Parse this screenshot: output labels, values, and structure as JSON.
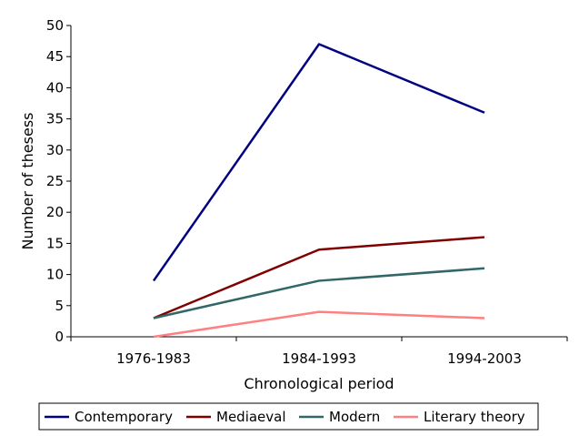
{
  "chart_data": {
    "type": "line",
    "title": "",
    "xlabel": "Chronological period",
    "ylabel": "Number of thesess",
    "categories": [
      "1976-1983",
      "1984-1993",
      "1994-2003"
    ],
    "ylim": [
      0,
      50
    ],
    "yticks": [
      0,
      5,
      10,
      15,
      20,
      25,
      30,
      35,
      40,
      45,
      50
    ],
    "grid": false,
    "legend_position": "bottom",
    "series": [
      {
        "name": "Contemporary",
        "color": "#000080",
        "values": [
          9,
          47,
          36
        ]
      },
      {
        "name": "Mediaeval",
        "color": "#800000",
        "values": [
          3,
          14,
          16
        ]
      },
      {
        "name": "Modern",
        "color": "#336666",
        "values": [
          3,
          9,
          11
        ]
      },
      {
        "name": "Literary theory",
        "color": "#ff8080",
        "values": [
          0,
          4,
          3
        ]
      }
    ]
  }
}
